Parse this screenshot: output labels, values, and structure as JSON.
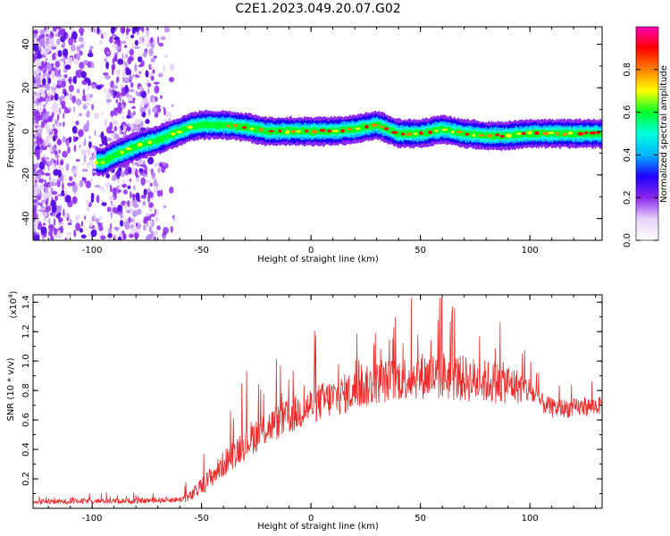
{
  "figure_title": "C2E1.2023.049.20.07.G02",
  "chart_data": [
    {
      "type": "heatmap",
      "xlabel": "Height of straight line (km)",
      "ylabel": "Frequency (Hz)",
      "xlim": [
        -127,
        133
      ],
      "ylim": [
        -50,
        48
      ],
      "xticks": [
        -100,
        -50,
        0,
        50,
        100
      ],
      "yticks": [
        -40,
        -20,
        0,
        20,
        40
      ],
      "colorbar": {
        "label": "Normalized spectral amplitude",
        "range": [
          0,
          1
        ],
        "ticks": [
          "0.0",
          "0.2",
          "0.4",
          "0.6",
          "0.8"
        ],
        "tick_values": [
          0,
          0.2,
          0.4,
          0.6,
          0.8
        ],
        "colors": [
          "#ffffff",
          "#e6d2fa",
          "#8c28f0",
          "#1e00ff",
          "#00b4ff",
          "#00ffdc",
          "#00ff28",
          "#ffff00",
          "#ff8000",
          "#ff0000",
          "#ff00b4"
        ]
      },
      "ridge": {
        "x": [
          -100,
          -95,
          -90,
          -80,
          -70,
          -60,
          -55,
          -50,
          -40,
          -30,
          -20,
          -10,
          0,
          10,
          20,
          25,
          30,
          35,
          40,
          50,
          60,
          70,
          80,
          90,
          100,
          110,
          120,
          133
        ],
        "y": [
          -14,
          -14,
          -11,
          -7,
          -4,
          0,
          2,
          3,
          3,
          2,
          0,
          0,
          0,
          0,
          1,
          2,
          3,
          1,
          -1,
          -1,
          1,
          -1,
          -2,
          -2,
          -1,
          -1,
          -1,
          -1
        ]
      }
    },
    {
      "type": "line",
      "xlabel": "Height of straight line (km)",
      "ylabel": "SNR (10 * v/v)",
      "yscale_note": "(x10",
      "yscale_exp": "4",
      "yscale_close": ")",
      "xlim": [
        -127,
        133
      ],
      "ylim": [
        0,
        1.45
      ],
      "xticks": [
        -100,
        -50,
        0,
        50,
        100
      ],
      "yticks": [
        0.2,
        0.4,
        0.6,
        0.8,
        1.0,
        1.2,
        1.4
      ],
      "ytick_labels": [
        "0.2",
        "0.4",
        "0.6",
        "0.8",
        "1.0",
        "1.2",
        "1.4"
      ],
      "color": "#ee2c2c",
      "envelope_x": [
        -127,
        -100,
        -80,
        -60,
        -55,
        -50,
        -45,
        -40,
        -35,
        -30,
        -25,
        -20,
        -10,
        0,
        10,
        20,
        30,
        40,
        50,
        60,
        70,
        80,
        90,
        100,
        105,
        110,
        120,
        133
      ],
      "envelope_y": [
        0.04,
        0.05,
        0.05,
        0.06,
        0.08,
        0.15,
        0.22,
        0.3,
        0.38,
        0.45,
        0.5,
        0.55,
        0.62,
        0.7,
        0.75,
        0.8,
        0.85,
        0.88,
        0.9,
        0.9,
        0.88,
        0.86,
        0.85,
        0.8,
        0.72,
        0.68,
        0.68,
        0.7
      ],
      "noise_x": [
        -127,
        -60,
        -50,
        -30,
        -20,
        0,
        40,
        60,
        90,
        105,
        133
      ],
      "noise_y": [
        0.015,
        0.02,
        0.06,
        0.12,
        0.12,
        0.13,
        0.15,
        0.17,
        0.14,
        0.07,
        0.06
      ]
    }
  ]
}
